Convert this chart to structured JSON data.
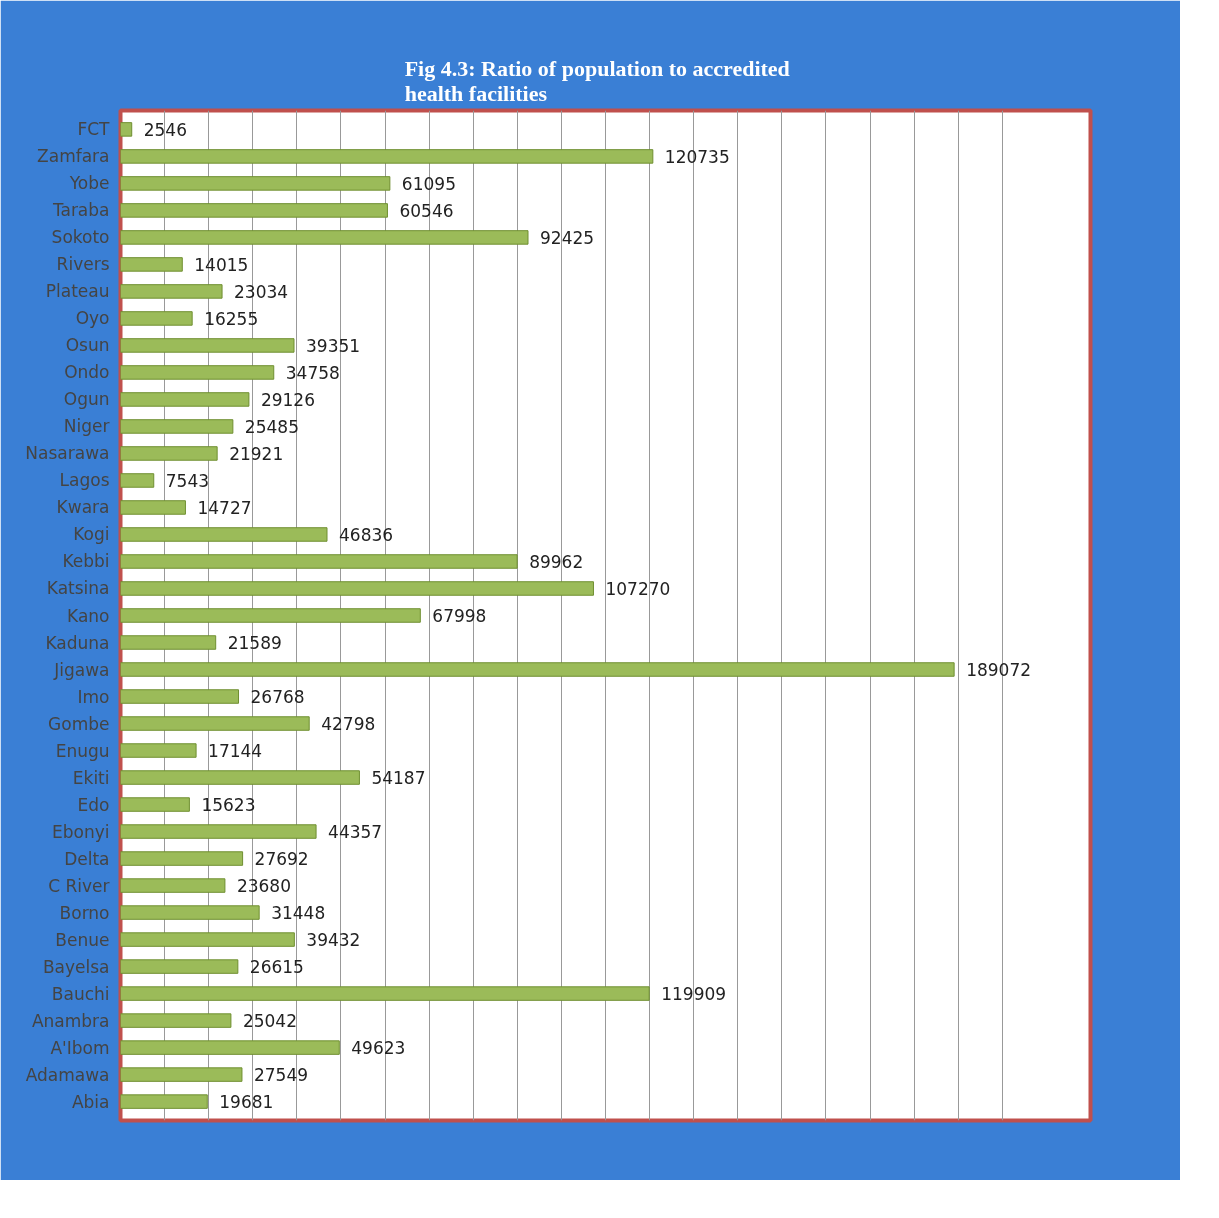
{
  "chart_data": {
    "type": "bar",
    "orientation": "horizontal",
    "title": "Fig 4.3:  Ratio of  population  to accredited\nhealth facilities",
    "categories": [
      "FCT",
      "Zamfara",
      "Yobe",
      "Taraba",
      "Sokoto",
      "Rivers",
      "Plateau",
      "Oyo",
      "Osun",
      "Ondo",
      "Ogun",
      "Niger",
      "Nasarawa",
      "Lagos",
      "Kwara",
      "Kogi",
      "Kebbi",
      "Katsina",
      "Kano",
      "Kaduna",
      "Jigawa",
      "Imo",
      "Gombe",
      "Enugu",
      "Ekiti",
      "Edo",
      "Ebonyi",
      "Delta",
      "C River",
      "Borno",
      "Benue",
      "Bayelsa",
      "Bauchi",
      "Anambra",
      "A'Ibom",
      "Adamawa",
      "Abia"
    ],
    "values": [
      2546,
      120735,
      61095,
      60546,
      92425,
      14015,
      23034,
      16255,
      39351,
      34758,
      29126,
      25485,
      21921,
      7543,
      14727,
      46836,
      89962,
      107270,
      67998,
      21589,
      189072,
      26768,
      42798,
      17144,
      54187,
      15623,
      44357,
      27692,
      23680,
      31448,
      39432,
      26615,
      119909,
      25042,
      49623,
      27549,
      19681
    ],
    "color": "#9bbb59",
    "data_labels": true,
    "xlim": [
      0,
      220000
    ],
    "xticks": [
      {
        "value": 0,
        "label": null
      },
      {
        "value": 10000,
        "label": null
      },
      {
        "value": 20000,
        "label": null
      },
      {
        "value": 30000,
        "label": null
      },
      {
        "value": 40000,
        "label": null
      },
      {
        "value": 50000,
        "label": null
      },
      {
        "value": 60000,
        "label": null
      },
      {
        "value": 70000,
        "label": null
      },
      {
        "value": 80000,
        "label": null
      },
      {
        "value": 90000,
        "label": null
      },
      {
        "value": 100000,
        "label": null
      },
      {
        "value": 110000,
        "label": null
      },
      {
        "value": 120000,
        "label": null
      },
      {
        "value": 130000,
        "label": null
      },
      {
        "value": 140000,
        "label": null
      },
      {
        "value": 150000,
        "label": null
      },
      {
        "value": 160000,
        "label": null
      },
      {
        "value": 170000,
        "label": null
      },
      {
        "value": 180000,
        "label": null
      },
      {
        "value": 190000,
        "label": null
      },
      {
        "value": 200000,
        "label": null
      }
    ],
    "grid": "x",
    "tick_labels": "y"
  }
}
